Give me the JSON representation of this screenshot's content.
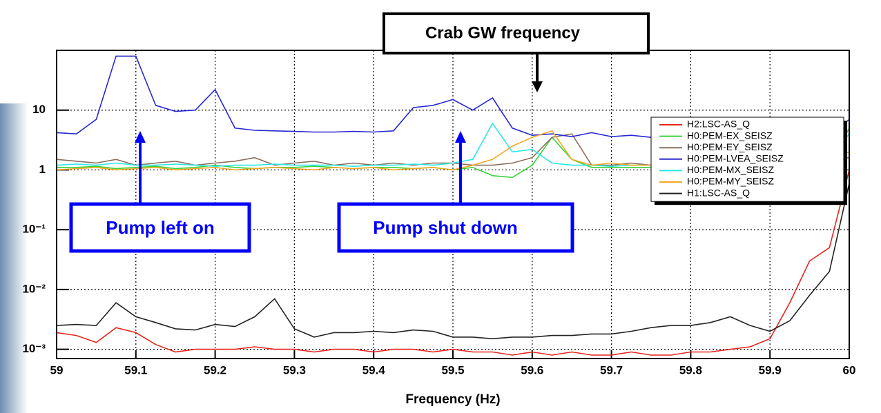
{
  "chart_data": {
    "type": "line",
    "x_label": "Frequency (Hz)",
    "annotations": [
      "Crab GW frequency",
      "Pump left on",
      "Pump shut down"
    ],
    "log_y": true,
    "grid": true,
    "legend_position": "upper-right",
    "xlim": [
      59,
      60
    ],
    "xticks": [
      59,
      59.1,
      59.2,
      59.3,
      59.4,
      59.5,
      59.6,
      59.7,
      59.8,
      59.9,
      60
    ],
    "ylim": [
      0.0007,
      100
    ],
    "yticks": [
      {
        "value": 0.001,
        "label": "10⁻³"
      },
      {
        "value": 0.01,
        "label": "10⁻²"
      },
      {
        "value": 0.1,
        "label": "10⁻¹"
      },
      1,
      10
    ],
    "x": [
      59,
      59.025,
      59.05,
      59.075,
      59.1,
      59.125,
      59.15,
      59.175,
      59.2,
      59.225,
      59.25,
      59.275,
      59.3,
      59.325,
      59.35,
      59.375,
      59.4,
      59.425,
      59.45,
      59.475,
      59.5,
      59.525,
      59.55,
      59.575,
      59.6,
      59.625,
      59.65,
      59.675,
      59.7,
      59.725,
      59.75,
      59.775,
      59.8,
      59.825,
      59.85,
      59.875,
      59.9,
      59.925,
      59.95,
      59.975,
      60
    ],
    "series": [
      {
        "name": "H2:LSC-AS_Q",
        "color": "#e8241f",
        "values": [
          0.0019,
          0.0017,
          0.0013,
          0.0023,
          0.0019,
          0.0012,
          0.0009,
          0.001,
          0.001,
          0.001,
          0.0011,
          0.001,
          0.001,
          0.0009,
          0.001,
          0.001,
          0.0009,
          0.001,
          0.001,
          0.0009,
          0.001,
          0.0009,
          0.0009,
          0.0008,
          0.0009,
          0.0008,
          0.0009,
          0.0008,
          0.0008,
          0.0009,
          0.0008,
          0.0008,
          0.0009,
          0.0009,
          0.001,
          0.0011,
          0.0015,
          0.006,
          0.03,
          0.05,
          1
        ]
      },
      {
        "name": "H0:PEM-EX_SEISZ",
        "color": "#3cd23c",
        "values": [
          1.1,
          1.1,
          1.15,
          1.05,
          1.1,
          1.15,
          1.05,
          1.1,
          1.2,
          1.1,
          1.05,
          1.1,
          1.1,
          1.15,
          1.1,
          1.05,
          1.1,
          1.1,
          1.05,
          1.1,
          1.0,
          1.1,
          0.8,
          0.75,
          1.2,
          3.5,
          1.5,
          1.1,
          1.1,
          1.1,
          1.1,
          1.1,
          1.1,
          1.1,
          1.1,
          1.1,
          1.1,
          1.1,
          1.1,
          1.2,
          5
        ]
      },
      {
        "name": "H0:PEM-EY_SEISZ",
        "color": "#8c6e5a",
        "values": [
          1.5,
          1.4,
          1.3,
          1.5,
          1.2,
          1.3,
          1.4,
          1.2,
          1.3,
          1.4,
          1.6,
          1.2,
          1.3,
          1.4,
          1.2,
          1.3,
          1.2,
          1.3,
          1.2,
          1.3,
          1.3,
          1.2,
          1.2,
          1.3,
          1.6,
          3.5,
          4,
          1.2,
          1.2,
          1.3,
          1.2,
          1.2,
          1.3,
          1.2,
          1.2,
          1.2,
          1.2,
          1.3,
          1.3,
          1.5,
          1.6
        ]
      },
      {
        "name": "H0:PEM-LVEA_SEISZ",
        "color": "#2828d2",
        "values": [
          4.2,
          4,
          7,
          80,
          80,
          12,
          9.5,
          10,
          22,
          5,
          4.6,
          4.5,
          4.4,
          4.3,
          4.3,
          4.4,
          4.3,
          4.5,
          11,
          12,
          15,
          10,
          16,
          5,
          3.8,
          4,
          3.6,
          4.2,
          3.6,
          3.8,
          3.5,
          3.8,
          3.5,
          3.8,
          3.6,
          3.7,
          3.5,
          3.4,
          3.3,
          3.6,
          7
        ]
      },
      {
        "name": "H0:PEM-MX_SEISZ",
        "color": "#28e6e6",
        "values": [
          1.2,
          1.25,
          1.2,
          1.3,
          1.2,
          1.2,
          1.25,
          1.2,
          1.15,
          1.2,
          1.2,
          1.25,
          1.2,
          1.2,
          1.2,
          1.15,
          1.2,
          1.2,
          1.25,
          1.2,
          1.3,
          1.5,
          6,
          2,
          2.2,
          1.3,
          1.2,
          1.2,
          1.15,
          1.2,
          1.2,
          1.2,
          1.2,
          1.2,
          1.2,
          1.2,
          1.2,
          1.2,
          1.3,
          1.5,
          4
        ]
      },
      {
        "name": "H0:PEM-MY_SEISZ",
        "color": "#f5a623",
        "values": [
          1.0,
          1.05,
          1.1,
          1.0,
          1.05,
          1.1,
          1.0,
          1.05,
          1.1,
          1.0,
          1.05,
          1.1,
          1.05,
          1.0,
          1.1,
          1.05,
          1.1,
          1.0,
          1.05,
          1.1,
          1.0,
          1.2,
          1.5,
          2.5,
          3.5,
          4.5,
          1.5,
          1.2,
          1.3,
          1.2,
          1.2,
          1.2,
          1.2,
          1.2,
          1.2,
          1.2,
          1.2,
          1.2,
          1.3,
          1.5,
          2
        ]
      },
      {
        "name": "H1:LSC-AS_Q",
        "color": "#222222",
        "values": [
          0.0025,
          0.0026,
          0.0025,
          0.006,
          0.0035,
          0.0028,
          0.0022,
          0.0021,
          0.0026,
          0.0024,
          0.0035,
          0.007,
          0.0022,
          0.0016,
          0.0019,
          0.0019,
          0.002,
          0.0019,
          0.0021,
          0.002,
          0.0016,
          0.0016,
          0.0015,
          0.0016,
          0.0016,
          0.0017,
          0.0017,
          0.0018,
          0.0018,
          0.002,
          0.0023,
          0.0025,
          0.0025,
          0.0028,
          0.0035,
          0.0025,
          0.002,
          0.003,
          0.008,
          0.02,
          0.6
        ]
      }
    ]
  }
}
